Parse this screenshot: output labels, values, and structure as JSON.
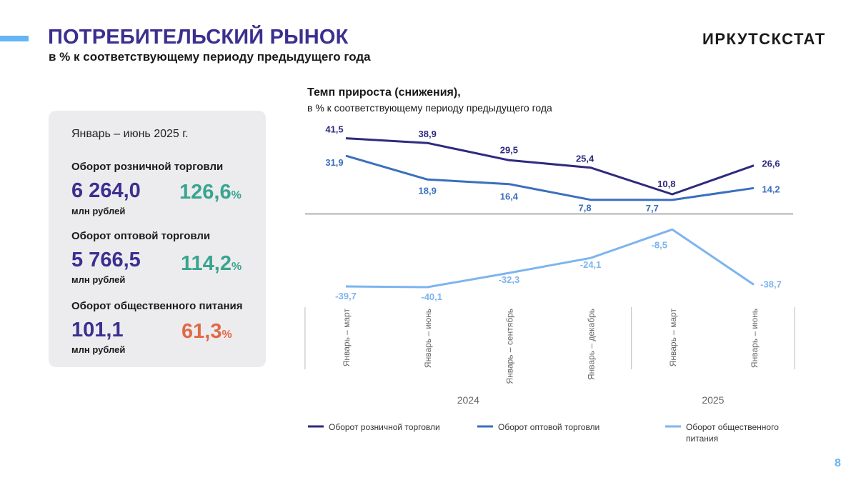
{
  "header": {
    "title": "ПОТРЕБИТЕЛЬСКИЙ РЫНОК",
    "subtitle": "в % к соответствующему периоду предыдущего года",
    "logo": "ИРКУТСКСТАТ"
  },
  "card": {
    "period": "Январь – июнь 2025 г.",
    "indicators": [
      {
        "label": "Оборот розничной торговли",
        "value": "6 264,0",
        "unit": "млн рублей",
        "percent": "126,6",
        "percent_sign": "%",
        "color": "#3aa58f"
      },
      {
        "label": "Оборот оптовой торговли",
        "value": "5 766,5",
        "unit": "млн рублей",
        "percent": "114,2",
        "percent_sign": "%",
        "color": "#3aa58f"
      },
      {
        "label": "Оборот общественного питания",
        "value": "101,1",
        "unit": "млн рублей",
        "percent": "61,3",
        "percent_sign": "%",
        "color": "#e06a45"
      }
    ]
  },
  "chart_data": {
    "type": "line",
    "title": "Темп прироста (снижения),",
    "subtitle": "в % к соответствующему периоду предыдущего года",
    "categories": [
      "Январь – март",
      "Январь – июнь",
      "Январь – сентябрь",
      "Январь – декабрь",
      "Январь – март",
      "Январь – июнь"
    ],
    "year_groups": [
      {
        "label": "2024",
        "span": 4
      },
      {
        "label": "2025",
        "span": 2
      }
    ],
    "series": [
      {
        "name": "Оборот розничной торговли",
        "values": [
          41.5,
          38.9,
          29.5,
          25.4,
          10.8,
          26.6
        ],
        "labels": [
          "41,5",
          "38,9",
          "29,5",
          "25,4",
          "10,8",
          "26,6"
        ],
        "color": "#2e2a7f"
      },
      {
        "name": "Оборот оптовой торговли",
        "values": [
          31.9,
          18.9,
          16.4,
          7.8,
          7.7,
          14.2
        ],
        "labels": [
          "31,9",
          "18,9",
          "16,4",
          "7,8",
          "7,7",
          "14,2"
        ],
        "color": "#3a6fbf"
      },
      {
        "name": "Оборот общественного питания",
        "values": [
          -39.7,
          -40.1,
          -32.3,
          -24.1,
          -8.5,
          -38.7
        ],
        "labels": [
          "-39,7",
          "-40,1",
          "-32,3",
          "-24,1",
          "-8,5",
          "-38,7"
        ],
        "color": "#7db4ef"
      }
    ],
    "xlabel": "",
    "ylabel": "",
    "ylim": [
      -44,
      48
    ],
    "zero_line": true,
    "grid": false,
    "legend_position": "bottom"
  },
  "page_number": "8"
}
